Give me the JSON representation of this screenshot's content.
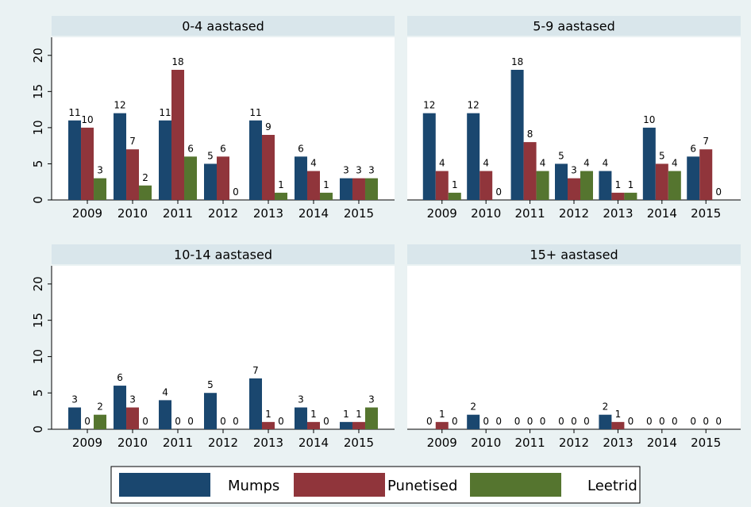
{
  "chart_data": {
    "type": "bar",
    "panel_titles": [
      "0-4 aastased",
      "5-9 aastased",
      "10-14 aastased",
      "15+ aastased"
    ],
    "categories": [
      "2009",
      "2010",
      "2011",
      "2012",
      "2013",
      "2014",
      "2015"
    ],
    "series": [
      {
        "name": "Mumps",
        "color": "#1a476f",
        "values": [
          [
            11,
            12,
            11,
            5,
            11,
            6,
            3
          ],
          [
            12,
            12,
            18,
            5,
            4,
            10,
            6
          ],
          [
            3,
            6,
            4,
            5,
            7,
            3,
            1
          ],
          [
            0,
            2,
            0,
            0,
            2,
            0,
            0
          ]
        ]
      },
      {
        "name": "Punetised",
        "color": "#90353b",
        "values": [
          [
            10,
            7,
            18,
            6,
            9,
            4,
            3
          ],
          [
            4,
            4,
            8,
            3,
            1,
            5,
            7
          ],
          [
            0,
            3,
            0,
            0,
            1,
            1,
            1
          ],
          [
            1,
            0,
            0,
            0,
            1,
            0,
            0
          ]
        ]
      },
      {
        "name": "Leetrid",
        "color": "#55752f",
        "values": [
          [
            3,
            2,
            6,
            0,
            1,
            1,
            3
          ],
          [
            1,
            0,
            4,
            4,
            1,
            4,
            0
          ],
          [
            2,
            0,
            0,
            0,
            0,
            0,
            3
          ],
          [
            0,
            0,
            0,
            0,
            0,
            0,
            0
          ]
        ]
      }
    ],
    "ylim": [
      0,
      22.5
    ],
    "yticks": [
      0,
      5,
      10,
      15,
      20
    ]
  }
}
